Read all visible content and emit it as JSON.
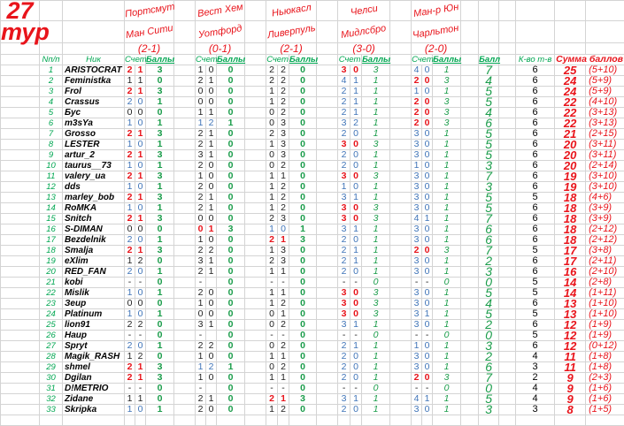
{
  "title": {
    "number": "27",
    "word": "тур"
  },
  "matches": [
    {
      "home": "Портсмут",
      "away": "Ман Сити",
      "result": "(2-1)"
    },
    {
      "home": "Вест Хем",
      "away": "Уотфорд",
      "result": "(0-1)"
    },
    {
      "home": "Ньюкасл",
      "away": "Ливерпуль",
      "result": "(2-1)"
    },
    {
      "home": "Челси",
      "away": "Мидлсбро",
      "result": "(3-0)"
    },
    {
      "home": "Ман-р Юн",
      "away": "Чарльтон",
      "result": "(2-0)"
    }
  ],
  "headers": {
    "no": "Nп/п",
    "nick": "Ник",
    "score": "Счет",
    "points": "Баллы",
    "ball": "Балл",
    "kvo": "К-во т-в",
    "sum": "Сумма баллов"
  },
  "colors": {
    "exact": "#e8141b",
    "outcome": "#3f74b8",
    "miss": "#222222",
    "points": "#1a9c4a"
  },
  "rows": [
    {
      "no": "1",
      "nick": "ARISTOCRAT",
      "m": [
        [
          "2",
          "1",
          "3"
        ],
        [
          "1",
          "0",
          "0"
        ],
        [
          "2",
          "2",
          "0"
        ],
        [
          "3",
          "0",
          "3"
        ],
        [
          "4",
          "0",
          "1"
        ]
      ],
      "ball": "7",
      "kvo": "6",
      "sum": "25",
      "parts": "(5+10)"
    },
    {
      "no": "2",
      "nick": "Feministka",
      "m": [
        [
          "1",
          "1",
          "0"
        ],
        [
          "2",
          "1",
          "0"
        ],
        [
          "2",
          "2",
          "0"
        ],
        [
          "4",
          "1",
          "1"
        ],
        [
          "2",
          "0",
          "3"
        ]
      ],
      "ball": "4",
      "kvo": "6",
      "sum": "24",
      "parts": "(5+9)"
    },
    {
      "no": "3",
      "nick": "Frol",
      "m": [
        [
          "2",
          "1",
          "3"
        ],
        [
          "0",
          "0",
          "0"
        ],
        [
          "1",
          "2",
          "0"
        ],
        [
          "2",
          "1",
          "1"
        ],
        [
          "1",
          "0",
          "1"
        ]
      ],
      "ball": "5",
      "kvo": "6",
      "sum": "24",
      "parts": "(5+9)"
    },
    {
      "no": "4",
      "nick": "Crassus",
      "m": [
        [
          "2",
          "0",
          "1"
        ],
        [
          "0",
          "0",
          "0"
        ],
        [
          "1",
          "2",
          "0"
        ],
        [
          "2",
          "1",
          "1"
        ],
        [
          "2",
          "0",
          "3"
        ]
      ],
      "ball": "5",
      "kvo": "6",
      "sum": "22",
      "parts": "(4+10)"
    },
    {
      "no": "5",
      "nick": "Бус",
      "m": [
        [
          "0",
          "0",
          "0"
        ],
        [
          "1",
          "1",
          "0"
        ],
        [
          "0",
          "2",
          "0"
        ],
        [
          "2",
          "1",
          "1"
        ],
        [
          "2",
          "0",
          "3"
        ]
      ],
      "ball": "4",
      "kvo": "6",
      "sum": "22",
      "parts": "(3+13)"
    },
    {
      "no": "6",
      "nick": "m3sYa",
      "m": [
        [
          "1",
          "0",
          "1"
        ],
        [
          "1",
          "2",
          "1"
        ],
        [
          "0",
          "3",
          "0"
        ],
        [
          "3",
          "2",
          "1"
        ],
        [
          "2",
          "0",
          "3"
        ]
      ],
      "ball": "6",
      "kvo": "6",
      "sum": "22",
      "parts": "(3+13)"
    },
    {
      "no": "7",
      "nick": "Grosso",
      "m": [
        [
          "2",
          "1",
          "3"
        ],
        [
          "2",
          "1",
          "0"
        ],
        [
          "2",
          "3",
          "0"
        ],
        [
          "2",
          "0",
          "1"
        ],
        [
          "3",
          "0",
          "1"
        ]
      ],
      "ball": "5",
      "kvo": "6",
      "sum": "21",
      "parts": "(2+15)"
    },
    {
      "no": "8",
      "nick": "LESTER",
      "m": [
        [
          "1",
          "0",
          "1"
        ],
        [
          "2",
          "1",
          "0"
        ],
        [
          "1",
          "3",
          "0"
        ],
        [
          "3",
          "0",
          "3"
        ],
        [
          "3",
          "0",
          "1"
        ]
      ],
      "ball": "5",
      "kvo": "6",
      "sum": "20",
      "parts": "(3+11)"
    },
    {
      "no": "9",
      "nick": "artur_2",
      "m": [
        [
          "2",
          "1",
          "3"
        ],
        [
          "3",
          "1",
          "0"
        ],
        [
          "0",
          "3",
          "0"
        ],
        [
          "2",
          "0",
          "1"
        ],
        [
          "3",
          "0",
          "1"
        ]
      ],
      "ball": "5",
      "kvo": "6",
      "sum": "20",
      "parts": "(3+11)"
    },
    {
      "no": "10",
      "nick": "taurus__73",
      "m": [
        [
          "1",
          "0",
          "1"
        ],
        [
          "2",
          "0",
          "0"
        ],
        [
          "0",
          "2",
          "0"
        ],
        [
          "2",
          "0",
          "1"
        ],
        [
          "1",
          "0",
          "1"
        ]
      ],
      "ball": "3",
      "kvo": "6",
      "sum": "20",
      "parts": "(2+14)"
    },
    {
      "no": "11",
      "nick": "valery_ua",
      "m": [
        [
          "2",
          "1",
          "3"
        ],
        [
          "1",
          "0",
          "0"
        ],
        [
          "1",
          "1",
          "0"
        ],
        [
          "3",
          "0",
          "3"
        ],
        [
          "3",
          "0",
          "1"
        ]
      ],
      "ball": "7",
      "kvo": "6",
      "sum": "19",
      "parts": "(3+10)"
    },
    {
      "no": "12",
      "nick": "dds",
      "m": [
        [
          "1",
          "0",
          "1"
        ],
        [
          "2",
          "0",
          "0"
        ],
        [
          "1",
          "2",
          "0"
        ],
        [
          "1",
          "0",
          "1"
        ],
        [
          "3",
          "0",
          "1"
        ]
      ],
      "ball": "3",
      "kvo": "6",
      "sum": "19",
      "parts": "(3+10)"
    },
    {
      "no": "13",
      "nick": "marley_bob",
      "m": [
        [
          "2",
          "1",
          "3"
        ],
        [
          "2",
          "1",
          "0"
        ],
        [
          "1",
          "2",
          "0"
        ],
        [
          "3",
          "1",
          "1"
        ],
        [
          "3",
          "0",
          "1"
        ]
      ],
      "ball": "5",
      "kvo": "5",
      "sum": "18",
      "parts": "(4+6)"
    },
    {
      "no": "14",
      "nick": "RoMKA",
      "m": [
        [
          "1",
          "0",
          "1"
        ],
        [
          "2",
          "1",
          "0"
        ],
        [
          "1",
          "2",
          "0"
        ],
        [
          "3",
          "0",
          "3"
        ],
        [
          "3",
          "0",
          "1"
        ]
      ],
      "ball": "5",
      "kvo": "6",
      "sum": "18",
      "parts": "(3+9)"
    },
    {
      "no": "15",
      "nick": "Snitch",
      "m": [
        [
          "2",
          "1",
          "3"
        ],
        [
          "0",
          "0",
          "0"
        ],
        [
          "2",
          "3",
          "0"
        ],
        [
          "3",
          "0",
          "3"
        ],
        [
          "4",
          "1",
          "1"
        ]
      ],
      "ball": "7",
      "kvo": "6",
      "sum": "18",
      "parts": "(3+9)"
    },
    {
      "no": "16",
      "nick": "S-DIMAN",
      "m": [
        [
          "0",
          "0",
          "0"
        ],
        [
          "0",
          "1",
          "3"
        ],
        [
          "1",
          "0",
          "1"
        ],
        [
          "3",
          "1",
          "1"
        ],
        [
          "3",
          "0",
          "1"
        ]
      ],
      "ball": "6",
      "kvo": "6",
      "sum": "18",
      "parts": "(2+12)"
    },
    {
      "no": "17",
      "nick": "Bezdelnik",
      "m": [
        [
          "2",
          "0",
          "1"
        ],
        [
          "1",
          "0",
          "0"
        ],
        [
          "2",
          "1",
          "3"
        ],
        [
          "2",
          "0",
          "1"
        ],
        [
          "3",
          "0",
          "1"
        ]
      ],
      "ball": "6",
      "kvo": "6",
      "sum": "18",
      "parts": "(2+12)"
    },
    {
      "no": "18",
      "nick": "Smalja",
      "m": [
        [
          "2",
          "1",
          "3"
        ],
        [
          "2",
          "2",
          "0"
        ],
        [
          "1",
          "3",
          "0"
        ],
        [
          "2",
          "1",
          "1"
        ],
        [
          "2",
          "0",
          "3"
        ]
      ],
      "ball": "7",
      "kvo": "5",
      "sum": "17",
      "parts": "(3+8)"
    },
    {
      "no": "19",
      "nick": "eXlim",
      "m": [
        [
          "1",
          "2",
          "0"
        ],
        [
          "3",
          "1",
          "0"
        ],
        [
          "2",
          "3",
          "0"
        ],
        [
          "2",
          "1",
          "1"
        ],
        [
          "3",
          "0",
          "1"
        ]
      ],
      "ball": "2",
      "kvo": "6",
      "sum": "17",
      "parts": "(2+11)"
    },
    {
      "no": "20",
      "nick": "RED_FAN",
      "m": [
        [
          "2",
          "0",
          "1"
        ],
        [
          "2",
          "1",
          "0"
        ],
        [
          "1",
          "1",
          "0"
        ],
        [
          "2",
          "0",
          "1"
        ],
        [
          "3",
          "0",
          "1"
        ]
      ],
      "ball": "3",
      "kvo": "6",
      "sum": "16",
      "parts": "(2+10)"
    },
    {
      "no": "21",
      "nick": "kobi",
      "m": [
        [
          "-",
          "-",
          "0"
        ],
        [
          "-",
          "",
          "0"
        ],
        [
          "-",
          "-",
          "0"
        ],
        [
          "-",
          "-",
          "0"
        ],
        [
          "-",
          "-",
          "0"
        ]
      ],
      "ball": "0",
      "kvo": "5",
      "sum": "14",
      "parts": "(2+8)"
    },
    {
      "no": "22",
      "nick": "Mislik",
      "m": [
        [
          "1",
          "0",
          "1"
        ],
        [
          "2",
          "0",
          "0"
        ],
        [
          "1",
          "1",
          "0"
        ],
        [
          "3",
          "0",
          "3"
        ],
        [
          "3",
          "0",
          "1"
        ]
      ],
      "ball": "5",
      "kvo": "5",
      "sum": "14",
      "parts": "(1+11)"
    },
    {
      "no": "23",
      "nick": "Зеир",
      "m": [
        [
          "0",
          "0",
          "0"
        ],
        [
          "1",
          "0",
          "0"
        ],
        [
          "1",
          "2",
          "0"
        ],
        [
          "3",
          "0",
          "3"
        ],
        [
          "3",
          "0",
          "1"
        ]
      ],
      "ball": "4",
      "kvo": "6",
      "sum": "13",
      "parts": "(1+10)"
    },
    {
      "no": "24",
      "nick": "Platinum",
      "m": [
        [
          "1",
          "0",
          "1"
        ],
        [
          "0",
          "0",
          "0"
        ],
        [
          "0",
          "1",
          "0"
        ],
        [
          "3",
          "0",
          "3"
        ],
        [
          "3",
          "1",
          "1"
        ]
      ],
      "ball": "5",
      "kvo": "5",
      "sum": "13",
      "parts": "(1+10)"
    },
    {
      "no": "25",
      "nick": "lion91",
      "m": [
        [
          "2",
          "2",
          "0"
        ],
        [
          "3",
          "1",
          "0"
        ],
        [
          "0",
          "2",
          "0"
        ],
        [
          "3",
          "1",
          "1"
        ],
        [
          "3",
          "0",
          "1"
        ]
      ],
      "ball": "2",
      "kvo": "6",
      "sum": "12",
      "parts": "(1+9)"
    },
    {
      "no": "26",
      "nick": "Haup",
      "m": [
        [
          "-",
          "-",
          "0"
        ],
        [
          "-",
          "",
          "0"
        ],
        [
          "-",
          "-",
          "0"
        ],
        [
          "-",
          "-",
          "0"
        ],
        [
          "-",
          "-",
          "0"
        ]
      ],
      "ball": "0",
      "kvo": "5",
      "sum": "12",
      "parts": "(1+9)"
    },
    {
      "no": "27",
      "nick": "Spryt",
      "m": [
        [
          "2",
          "0",
          "1"
        ],
        [
          "2",
          "2",
          "0"
        ],
        [
          "0",
          "2",
          "0"
        ],
        [
          "2",
          "1",
          "1"
        ],
        [
          "1",
          "0",
          "1"
        ]
      ],
      "ball": "3",
      "kvo": "6",
      "sum": "12",
      "parts": "(0+12)"
    },
    {
      "no": "28",
      "nick": "Magik_RASH",
      "m": [
        [
          "1",
          "2",
          "0"
        ],
        [
          "1",
          "0",
          "0"
        ],
        [
          "1",
          "1",
          "0"
        ],
        [
          "2",
          "0",
          "1"
        ],
        [
          "3",
          "0",
          "1"
        ]
      ],
      "ball": "2",
      "kvo": "4",
      "sum": "11",
      "parts": "(1+8)"
    },
    {
      "no": "29",
      "nick": "shmel",
      "m": [
        [
          "2",
          "1",
          "3"
        ],
        [
          "1",
          "2",
          "1"
        ],
        [
          "0",
          "2",
          "0"
        ],
        [
          "2",
          "0",
          "1"
        ],
        [
          "3",
          "0",
          "1"
        ]
      ],
      "ball": "6",
      "kvo": "3",
      "sum": "11",
      "parts": "(1+8)"
    },
    {
      "no": "30",
      "nick": "Dgilan",
      "m": [
        [
          "2",
          "1",
          "3"
        ],
        [
          "1",
          "0",
          "0"
        ],
        [
          "1",
          "1",
          "0"
        ],
        [
          "2",
          "0",
          "1"
        ],
        [
          "2",
          "0",
          "3"
        ]
      ],
      "ball": "7",
      "kvo": "2",
      "sum": "9",
      "parts": "(2+3)"
    },
    {
      "no": "31",
      "nick": "D!METRIO",
      "m": [
        [
          "-",
          "-",
          "0"
        ],
        [
          "-",
          "",
          "0"
        ],
        [
          "-",
          "-",
          "0"
        ],
        [
          "-",
          "-",
          "0"
        ],
        [
          "-",
          "-",
          "0"
        ]
      ],
      "ball": "0",
      "kvo": "4",
      "sum": "9",
      "parts": "(1+6)"
    },
    {
      "no": "32",
      "nick": "Zidane",
      "m": [
        [
          "1",
          "1",
          "0"
        ],
        [
          "2",
          "1",
          "0"
        ],
        [
          "2",
          "1",
          "3"
        ],
        [
          "3",
          "1",
          "1"
        ],
        [
          "4",
          "1",
          "1"
        ]
      ],
      "ball": "5",
      "kvo": "4",
      "sum": "9",
      "parts": "(1+6)"
    },
    {
      "no": "33",
      "nick": "Skripka",
      "m": [
        [
          "1",
          "0",
          "1"
        ],
        [
          "2",
          "0",
          "0"
        ],
        [
          "1",
          "2",
          "0"
        ],
        [
          "2",
          "0",
          "1"
        ],
        [
          "3",
          "0",
          "1"
        ]
      ],
      "ball": "3",
      "kvo": "3",
      "sum": "8",
      "parts": "(1+5)"
    }
  ]
}
